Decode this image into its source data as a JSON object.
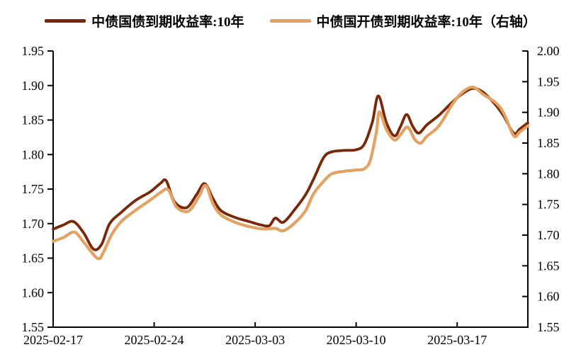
{
  "legend": {
    "items": [
      {
        "label": "中债国债到期收益率:10年",
        "color": "#7a2709"
      },
      {
        "label": "中债国开债到期收益率:10年（右轴）",
        "color": "#e2a263"
      }
    ]
  },
  "colors": {
    "axis": "#000000",
    "text": "#000000",
    "background": "#ffffff"
  },
  "chart_data": {
    "type": "line",
    "title": "",
    "grid": false,
    "legend_position": "top-center",
    "x_axis": {
      "unit": "trading-day offset from 2025-02-17",
      "domain_days": [
        0,
        23.5
      ],
      "tick_days": [
        0,
        5,
        10,
        15,
        20
      ],
      "tick_labels": [
        "2025-02-17",
        "2025-02-24",
        "2025-03-03",
        "2025-03-10",
        "2025-03-17"
      ]
    },
    "left_axis": {
      "min": 1.55,
      "max": 1.95,
      "step": 0.05,
      "tick_labels": [
        "1.95",
        "1.90",
        "1.85",
        "1.80",
        "1.75",
        "1.70",
        "1.65",
        "1.60",
        "1.55"
      ]
    },
    "right_axis": {
      "min": 1.55,
      "max": 2.0,
      "step": 0.05,
      "tick_labels": [
        "2.00",
        "1.95",
        "1.90",
        "1.85",
        "1.80",
        "1.75",
        "1.70",
        "1.65",
        "1.60",
        "1.55"
      ]
    },
    "series": [
      {
        "name": "中债国债到期收益率:10年",
        "axis": "left",
        "color": "#7a2709",
        "stroke_width": 3.8,
        "points": [
          [
            0,
            1.692
          ],
          [
            0.5,
            1.698
          ],
          [
            1,
            1.703
          ],
          [
            1.5,
            1.687
          ],
          [
            2,
            1.663
          ],
          [
            2.4,
            1.67
          ],
          [
            2.8,
            1.7
          ],
          [
            3.4,
            1.717
          ],
          [
            4.1,
            1.734
          ],
          [
            4.8,
            1.746
          ],
          [
            5.3,
            1.758
          ],
          [
            5.6,
            1.762
          ],
          [
            6,
            1.732
          ],
          [
            6.6,
            1.723
          ],
          [
            7.1,
            1.742
          ],
          [
            7.5,
            1.758
          ],
          [
            7.9,
            1.737
          ],
          [
            8.3,
            1.719
          ],
          [
            9,
            1.709
          ],
          [
            9.7,
            1.703
          ],
          [
            10.3,
            1.698
          ],
          [
            10.7,
            1.697
          ],
          [
            11,
            1.708
          ],
          [
            11.4,
            1.702
          ],
          [
            12,
            1.722
          ],
          [
            12.5,
            1.742
          ],
          [
            12.9,
            1.765
          ],
          [
            13.4,
            1.796
          ],
          [
            13.8,
            1.804
          ],
          [
            14.4,
            1.806
          ],
          [
            15,
            1.807
          ],
          [
            15.4,
            1.815
          ],
          [
            15.8,
            1.847
          ],
          [
            16.1,
            1.885
          ],
          [
            16.5,
            1.846
          ],
          [
            16.9,
            1.827
          ],
          [
            17.2,
            1.841
          ],
          [
            17.5,
            1.858
          ],
          [
            17.8,
            1.841
          ],
          [
            18.1,
            1.831
          ],
          [
            18.5,
            1.843
          ],
          [
            19.1,
            1.857
          ],
          [
            19.8,
            1.877
          ],
          [
            20.3,
            1.889
          ],
          [
            20.8,
            1.896
          ],
          [
            21.3,
            1.89
          ],
          [
            21.9,
            1.872
          ],
          [
            22.3,
            1.856
          ],
          [
            22.8,
            1.831
          ],
          [
            23.1,
            1.837
          ],
          [
            23.5,
            1.846
          ]
        ]
      },
      {
        "name": "中债国开债到期收益率:10年（右轴）",
        "axis": "right",
        "color": "#e2a263",
        "stroke_width": 4.2,
        "points": [
          [
            0,
            1.69
          ],
          [
            0.5,
            1.696
          ],
          [
            1.05,
            1.705
          ],
          [
            1.5,
            1.689
          ],
          [
            2.2,
            1.662
          ],
          [
            2.5,
            1.673
          ],
          [
            2.9,
            1.701
          ],
          [
            3.4,
            1.723
          ],
          [
            4.1,
            1.741
          ],
          [
            4.8,
            1.757
          ],
          [
            5.3,
            1.769
          ],
          [
            5.7,
            1.774
          ],
          [
            6.1,
            1.746
          ],
          [
            6.7,
            1.739
          ],
          [
            7.2,
            1.762
          ],
          [
            7.55,
            1.781
          ],
          [
            7.9,
            1.752
          ],
          [
            8.3,
            1.733
          ],
          [
            9,
            1.721
          ],
          [
            9.7,
            1.714
          ],
          [
            10.4,
            1.71
          ],
          [
            11,
            1.711
          ],
          [
            11.4,
            1.707
          ],
          [
            12,
            1.721
          ],
          [
            12.5,
            1.74
          ],
          [
            12.9,
            1.768
          ],
          [
            13.4,
            1.788
          ],
          [
            13.8,
            1.8
          ],
          [
            14.4,
            1.804
          ],
          [
            15,
            1.806
          ],
          [
            15.4,
            1.808
          ],
          [
            15.7,
            1.822
          ],
          [
            16,
            1.868
          ],
          [
            16.15,
            1.901
          ],
          [
            16.5,
            1.872
          ],
          [
            16.9,
            1.855
          ],
          [
            17.2,
            1.864
          ],
          [
            17.55,
            1.876
          ],
          [
            17.9,
            1.856
          ],
          [
            18.2,
            1.85
          ],
          [
            18.5,
            1.861
          ],
          [
            19.1,
            1.878
          ],
          [
            19.8,
            1.915
          ],
          [
            20.3,
            1.934
          ],
          [
            20.8,
            1.941
          ],
          [
            21.3,
            1.929
          ],
          [
            21.9,
            1.916
          ],
          [
            22.3,
            1.899
          ],
          [
            22.8,
            1.862
          ],
          [
            23.1,
            1.868
          ],
          [
            23.5,
            1.878
          ]
        ]
      }
    ]
  }
}
